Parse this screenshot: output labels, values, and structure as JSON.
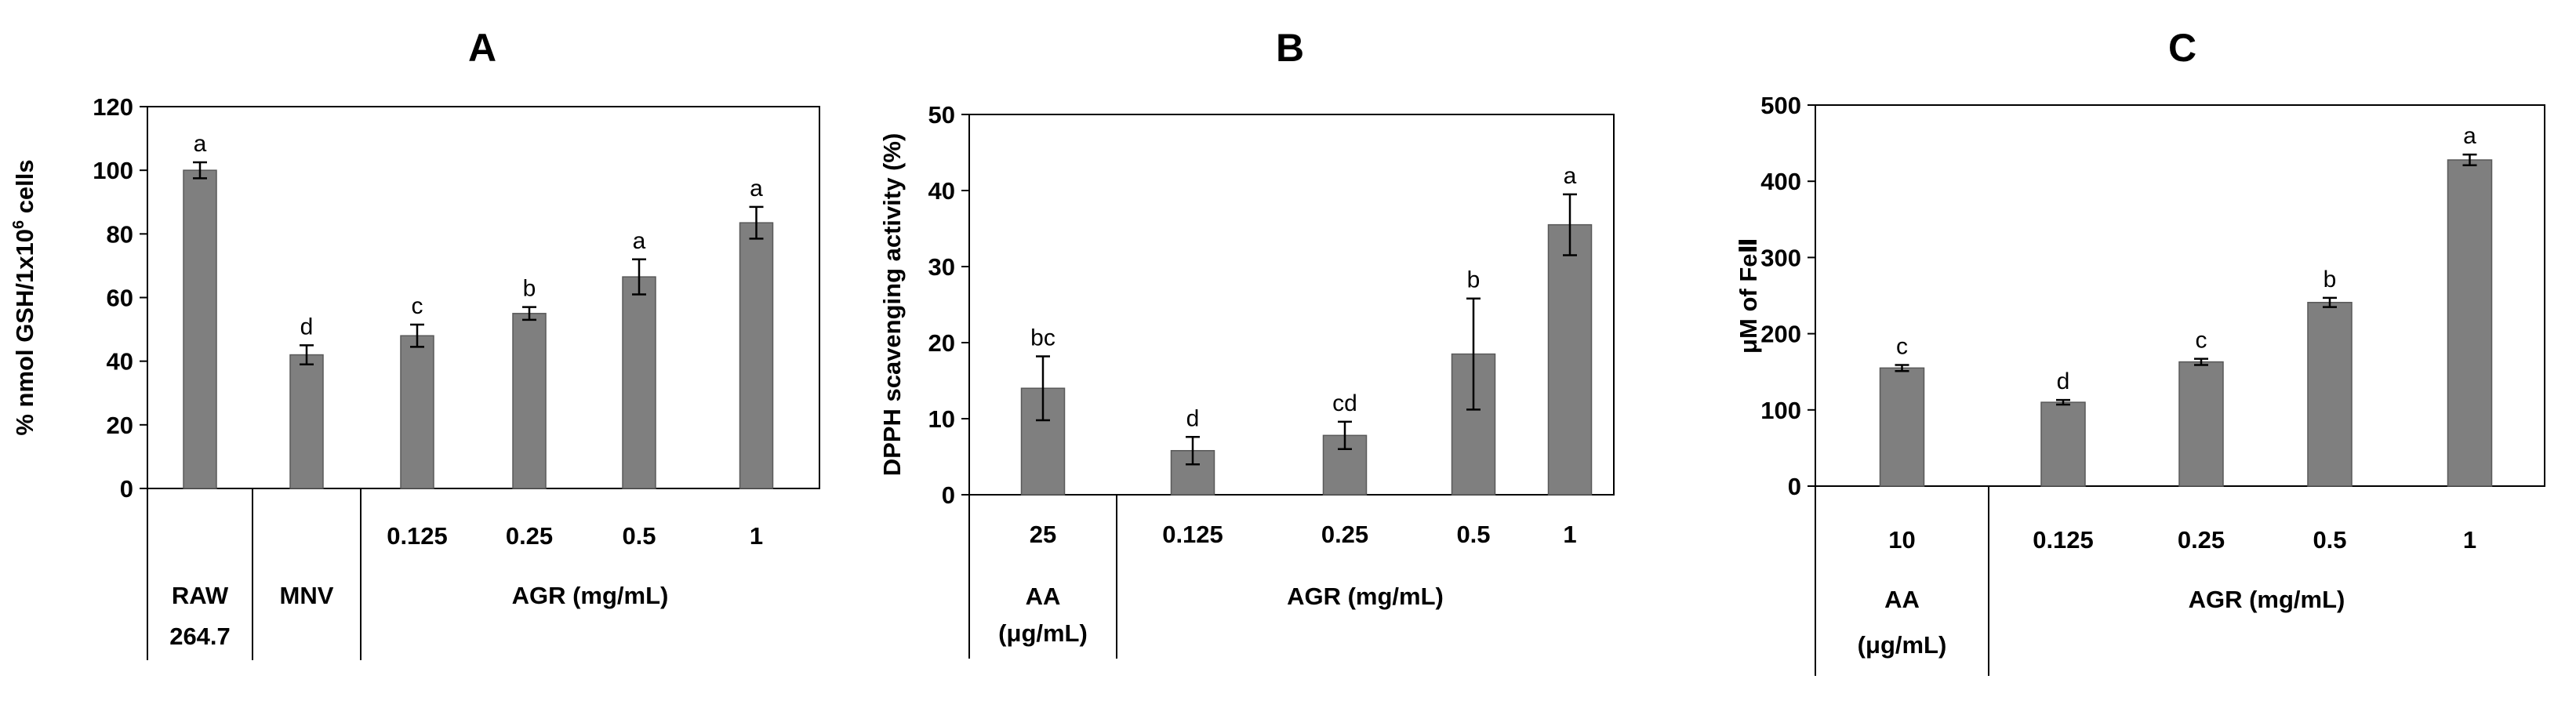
{
  "chart_data": [
    {
      "type": "bar",
      "title": "A",
      "ylabel": "% nmol GSH/1x10",
      "ylabel_sup": "6",
      "ylabel_suffix": " cells",
      "ylim": [
        0,
        120
      ],
      "yticks": [
        0,
        20,
        40,
        60,
        80,
        100,
        120
      ],
      "categories": [
        "",
        "",
        "0.125",
        "0.25",
        "0.5",
        "1"
      ],
      "values": [
        100,
        42,
        48,
        55,
        66.5,
        83.5
      ],
      "errors": [
        2.5,
        3,
        3.5,
        2,
        5.5,
        5
      ],
      "significance": [
        "a",
        "d",
        "c",
        "b",
        "a",
        "a"
      ],
      "groups": [
        {
          "label": [
            "RAW",
            "264.7"
          ],
          "span": [
            0,
            0
          ]
        },
        {
          "label": [
            "MNV"
          ],
          "span": [
            1,
            1
          ]
        },
        {
          "label": [
            "AGR (mg/mL)"
          ],
          "span": [
            2,
            5
          ]
        }
      ]
    },
    {
      "type": "bar",
      "title": "B",
      "ylabel": "DPPH scavenging activity (%)",
      "ylim": [
        0,
        50
      ],
      "yticks": [
        0,
        10,
        20,
        30,
        40,
        50
      ],
      "categories": [
        "25",
        "0.125",
        "0.25",
        "0.5",
        "1"
      ],
      "values": [
        14,
        5.8,
        7.8,
        18.5,
        35.5
      ],
      "errors": [
        4.2,
        1.8,
        1.8,
        7.3,
        4
      ],
      "significance": [
        "bc",
        "d",
        "cd",
        "b",
        "a"
      ],
      "groups": [
        {
          "label": [
            "AA",
            "(μg/mL)"
          ],
          "span": [
            0,
            0
          ]
        },
        {
          "label": [
            "AGR (mg/mL)"
          ],
          "span": [
            1,
            4
          ]
        }
      ]
    },
    {
      "type": "bar",
      "title": "C",
      "ylabel": "μM of FeⅡ",
      "ylim": [
        0,
        500
      ],
      "yticks": [
        0,
        100,
        200,
        300,
        400,
        500
      ],
      "categories": [
        "10",
        "0.125",
        "0.25",
        "0.5",
        "1"
      ],
      "values": [
        155,
        110,
        163,
        241,
        428
      ],
      "errors": [
        4,
        3,
        4,
        6,
        7
      ],
      "significance": [
        "c",
        "d",
        "c",
        "b",
        "a"
      ],
      "groups": [
        {
          "label": [
            "AA",
            "(μg/mL)"
          ],
          "span": [
            0,
            0
          ]
        },
        {
          "label": [
            "AGR (mg/mL)"
          ],
          "span": [
            1,
            4
          ]
        }
      ]
    }
  ]
}
